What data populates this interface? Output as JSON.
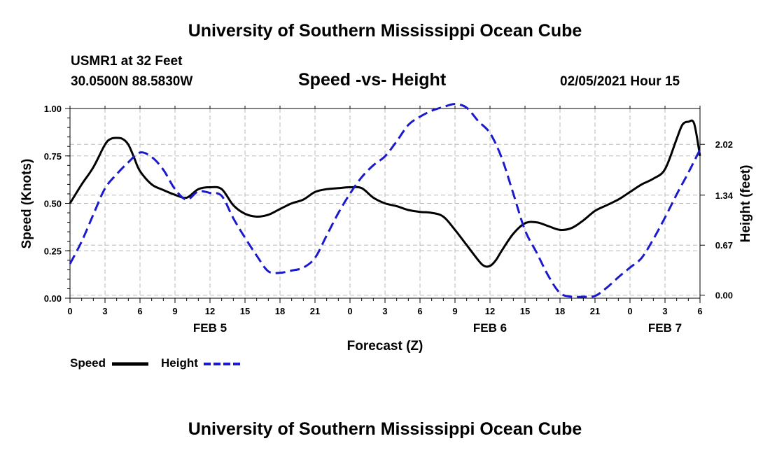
{
  "header": {
    "title": "University of Southern Mississippi Ocean Cube",
    "station": "USMR1 at 32 Feet",
    "coordinates": "30.0500N 88.5830W",
    "chart_title": "Speed -vs- Height",
    "datetime": "02/05/2021 Hour 15"
  },
  "footer": {
    "title": "University of Southern Mississippi Ocean Cube"
  },
  "chart_data": {
    "type": "line",
    "title": "Speed -vs- Height",
    "xlabel": "Forecast (Z)",
    "ylabel": "Speed (Knots)",
    "y2label": "Height (feet)",
    "grid": true,
    "x_range_hours": [
      0,
      54
    ],
    "x_tick_labels": [
      "0",
      "3",
      "6",
      "9",
      "12",
      "15",
      "18",
      "21",
      "0",
      "3",
      "6",
      "9",
      "12",
      "15",
      "18",
      "21",
      "0",
      "3",
      "6"
    ],
    "date_labels": [
      {
        "label": "FEB 5",
        "hour": 12
      },
      {
        "label": "FEB 6",
        "hour": 36
      },
      {
        "label": "FEB 7",
        "hour": 51
      }
    ],
    "ylim": [
      0,
      1.0
    ],
    "y_ticks": [
      "0.00",
      "0.25",
      "0.50",
      "0.75",
      "1.00"
    ],
    "y2lim": [
      -0.04,
      2.5
    ],
    "y2_ticks": [
      {
        "value": 0.0,
        "label": "0.00"
      },
      {
        "value": 0.67,
        "label": "0.67"
      },
      {
        "value": 1.34,
        "label": "1.34"
      },
      {
        "value": 2.02,
        "label": "2.02"
      }
    ],
    "legend": [
      {
        "name": "Speed",
        "color": "#000000",
        "style": "solid"
      },
      {
        "name": "Height",
        "color": "#1a1acc",
        "style": "dashed"
      }
    ],
    "series": [
      {
        "name": "Speed",
        "axis": "left",
        "color": "#000000",
        "style": "solid",
        "x": [
          0,
          1,
          2,
          3,
          3.5,
          4,
          4.5,
          5,
          5.5,
          6,
          7,
          8,
          9,
          10,
          11,
          12,
          13,
          14,
          15,
          16,
          17,
          18,
          19,
          20,
          21,
          22,
          23,
          24,
          25,
          26,
          27,
          28,
          29,
          30,
          31,
          32,
          33,
          34,
          35,
          35.5,
          36,
          36.5,
          37,
          38,
          39,
          40,
          41,
          42,
          43,
          44,
          45,
          46,
          47,
          48,
          49,
          50,
          51,
          52,
          52.5,
          53,
          53.5,
          54
        ],
        "values": [
          0.5,
          0.6,
          0.69,
          0.81,
          0.84,
          0.845,
          0.84,
          0.81,
          0.74,
          0.67,
          0.6,
          0.57,
          0.545,
          0.53,
          0.575,
          0.585,
          0.575,
          0.49,
          0.445,
          0.43,
          0.44,
          0.47,
          0.5,
          0.52,
          0.56,
          0.575,
          0.58,
          0.585,
          0.58,
          0.53,
          0.5,
          0.485,
          0.465,
          0.455,
          0.45,
          0.43,
          0.36,
          0.28,
          0.2,
          0.17,
          0.17,
          0.2,
          0.25,
          0.34,
          0.395,
          0.4,
          0.38,
          0.36,
          0.37,
          0.41,
          0.46,
          0.49,
          0.52,
          0.56,
          0.6,
          0.63,
          0.68,
          0.84,
          0.915,
          0.93,
          0.92,
          0.75
        ]
      },
      {
        "name": "Height",
        "axis": "right",
        "color": "#1a1acc",
        "style": "dashed",
        "x": [
          0,
          1,
          2,
          3,
          4,
          5,
          6,
          7,
          8,
          9,
          10,
          11,
          12,
          13,
          14,
          15,
          16,
          17,
          18,
          19,
          20,
          21,
          22,
          23,
          24,
          25,
          26,
          27,
          28,
          29,
          30,
          31,
          32,
          33,
          34,
          35,
          36,
          37,
          38,
          39,
          40,
          41,
          42,
          43,
          44,
          45,
          46,
          47,
          48,
          49,
          50,
          51,
          52,
          53,
          54
        ],
        "values": [
          0.42,
          0.72,
          1.08,
          1.43,
          1.62,
          1.78,
          1.91,
          1.85,
          1.68,
          1.42,
          1.28,
          1.39,
          1.37,
          1.33,
          1.03,
          0.77,
          0.53,
          0.32,
          0.3,
          0.33,
          0.37,
          0.5,
          0.8,
          1.1,
          1.36,
          1.58,
          1.74,
          1.86,
          2.06,
          2.28,
          2.39,
          2.47,
          2.52,
          2.56,
          2.51,
          2.33,
          2.17,
          1.84,
          1.36,
          0.87,
          0.57,
          0.26,
          0.03,
          -0.02,
          -0.02,
          -0.01,
          0.1,
          0.24,
          0.37,
          0.5,
          0.75,
          1.04,
          1.35,
          1.64,
          1.95
        ]
      }
    ]
  }
}
